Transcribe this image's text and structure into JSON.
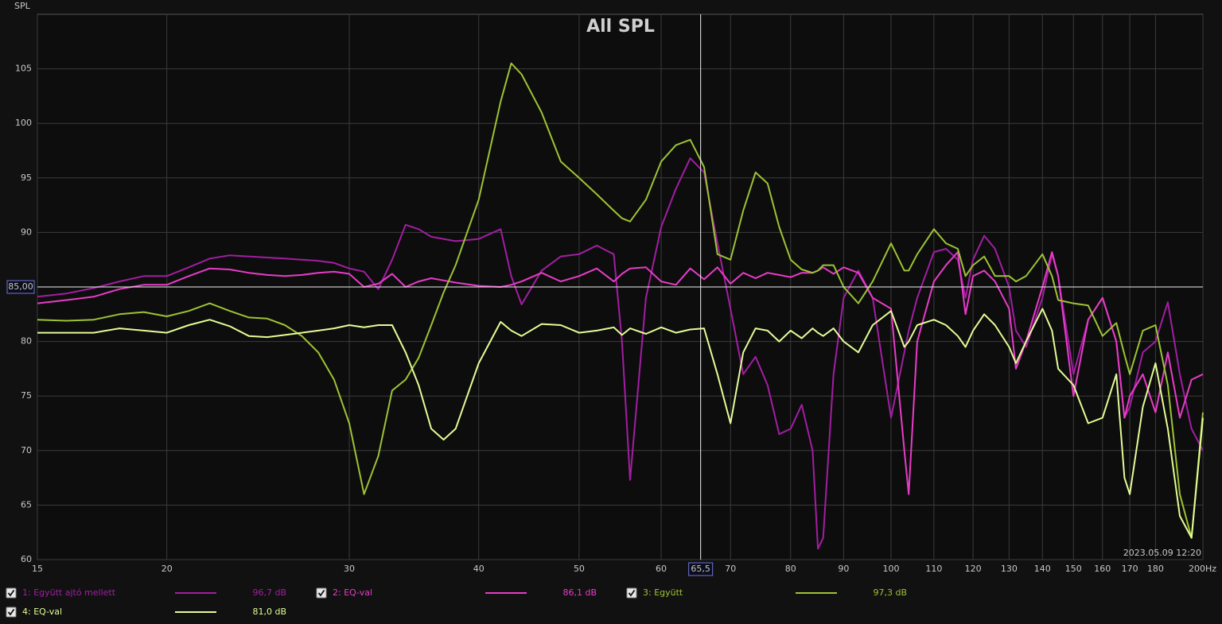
{
  "chart_data": {
    "type": "line",
    "title": "All SPL",
    "y_label": "SPL",
    "timestamp": "2023.05.09 12:20",
    "xlog": true,
    "grid": true,
    "xlim": [
      15,
      200
    ],
    "ylim": [
      60,
      110
    ],
    "xticks": [
      15,
      20,
      30,
      40,
      50,
      60,
      70,
      80,
      90,
      100,
      110,
      120,
      130,
      140,
      150,
      160,
      170,
      180,
      {
        "value": 200,
        "label": "200Hz"
      }
    ],
    "yticks": [
      60,
      65,
      70,
      75,
      80,
      85,
      90,
      95,
      100,
      105
    ],
    "cursor": {
      "x": {
        "value": 65.5,
        "label": "65,5"
      },
      "y": {
        "value": 85,
        "label": "85,00"
      }
    },
    "x": [
      15,
      16,
      17,
      18,
      19,
      20,
      21,
      22,
      23,
      24,
      25,
      26,
      27,
      28,
      29,
      30,
      31,
      32,
      33,
      34,
      35,
      36,
      37,
      38,
      40,
      42,
      43,
      44,
      46,
      48,
      50,
      52,
      54,
      55,
      56,
      58,
      60,
      62,
      64,
      66,
      68,
      70,
      72,
      74,
      76,
      78,
      80,
      82,
      84,
      85,
      86,
      88,
      90,
      93,
      96,
      100,
      103,
      104,
      106,
      110,
      113,
      116,
      118,
      120,
      123,
      126,
      130,
      132,
      135,
      140,
      143,
      145,
      150,
      155,
      160,
      165,
      168,
      170,
      175,
      180,
      185,
      190,
      195,
      200
    ],
    "series": [
      {
        "name": "1: Együtt ajtó mellett",
        "readout": "96,7 dB",
        "color": "#a21ea2",
        "values": [
          84.1,
          84.4,
          84.9,
          85.5,
          86,
          86,
          86.8,
          87.6,
          87.9,
          87.8,
          87.7,
          87.6,
          87.5,
          87.4,
          87.2,
          86.7,
          86.4,
          84.8,
          87.5,
          90.7,
          90.3,
          89.6,
          89.4,
          89.2,
          89.4,
          90.3,
          86,
          83.4,
          86.5,
          87.8,
          88,
          88.8,
          88,
          80,
          67.3,
          84,
          90.5,
          94,
          96.8,
          95.5,
          89,
          83,
          77,
          78.6,
          76,
          71.5,
          72,
          74.2,
          70,
          61,
          62,
          77,
          84,
          86.5,
          84,
          73,
          79,
          81,
          84,
          88.2,
          88.5,
          87.5,
          84,
          87.5,
          89.7,
          88.5,
          85,
          81,
          79.5,
          84,
          88,
          86,
          77,
          82,
          84,
          80,
          73,
          74,
          79,
          80,
          83.6,
          77,
          72,
          70
        ]
      },
      {
        "name": "2: EQ-val",
        "readout": "86,1 dB",
        "color": "#e83cc8",
        "values": [
          83.5,
          83.8,
          84.1,
          84.8,
          85.2,
          85.2,
          86,
          86.7,
          86.6,
          86.3,
          86.1,
          86,
          86.1,
          86.3,
          86.4,
          86.2,
          85,
          85.3,
          86.2,
          85,
          85.5,
          85.8,
          85.6,
          85.4,
          85.1,
          85,
          85.2,
          85.5,
          86.3,
          85.5,
          86,
          86.7,
          85.5,
          86.2,
          86.7,
          86.8,
          85.5,
          85.2,
          86.7,
          85.7,
          86.8,
          85.3,
          86.3,
          85.8,
          86.3,
          86.1,
          85.9,
          86.3,
          86.3,
          86.5,
          86.8,
          86.2,
          86.8,
          86.3,
          84,
          83,
          70,
          66,
          80,
          85.5,
          87,
          88.2,
          82.5,
          86,
          86.5,
          85.5,
          83,
          77.5,
          80,
          85,
          88.2,
          86,
          75,
          82,
          84,
          80,
          73,
          75,
          77,
          73.5,
          79,
          73,
          76.5,
          77
        ]
      },
      {
        "name": "3: Együtt",
        "readout": "97,3 dB",
        "color": "#9dc334",
        "values": [
          82,
          81.9,
          82,
          82.5,
          82.7,
          82.3,
          82.8,
          83.5,
          82.8,
          82.2,
          82.1,
          81.5,
          80.5,
          79,
          76.5,
          72.5,
          66,
          69.5,
          75.5,
          76.5,
          78.5,
          81.5,
          84.5,
          87,
          93,
          102,
          105.5,
          104.5,
          101,
          96.5,
          95,
          93.5,
          92,
          91.3,
          91,
          93,
          96.5,
          98,
          98.5,
          96,
          88,
          87.5,
          92,
          95.5,
          94.5,
          90.5,
          87.5,
          86.6,
          86.3,
          86.5,
          87,
          87,
          85,
          83.5,
          85.5,
          89,
          86.5,
          86.5,
          88,
          90.3,
          89,
          88.5,
          86,
          87,
          87.8,
          86,
          86,
          85.5,
          86,
          88,
          86,
          83.8,
          83.5,
          83.3,
          80.5,
          81.7,
          78.8,
          77,
          81,
          81.5,
          76,
          66,
          62,
          73.5
        ]
      },
      {
        "name": "4: EQ-val",
        "readout": "81,0 dB",
        "color": "#e4fc96",
        "values": [
          80.8,
          80.8,
          80.8,
          81.2,
          81,
          80.8,
          81.5,
          82,
          81.4,
          80.5,
          80.4,
          80.6,
          80.8,
          81,
          81.2,
          81.5,
          81.3,
          81.5,
          81.5,
          79,
          76,
          72,
          71,
          72,
          78,
          81.8,
          81,
          80.5,
          81.6,
          81.5,
          80.8,
          81,
          81.3,
          80.6,
          81.2,
          80.7,
          81.3,
          80.8,
          81.1,
          81.2,
          77,
          72.5,
          79,
          81.2,
          81,
          80,
          81,
          80.3,
          81.2,
          80.8,
          80.5,
          81.2,
          80,
          79,
          81.5,
          82.8,
          79.5,
          80,
          81.5,
          82,
          81.5,
          80.5,
          79.5,
          81,
          82.5,
          81.5,
          79.5,
          78,
          80,
          83,
          81,
          77.5,
          76,
          72.5,
          73,
          77,
          67.5,
          66,
          74,
          78,
          72,
          64,
          62,
          73
        ]
      }
    ]
  }
}
